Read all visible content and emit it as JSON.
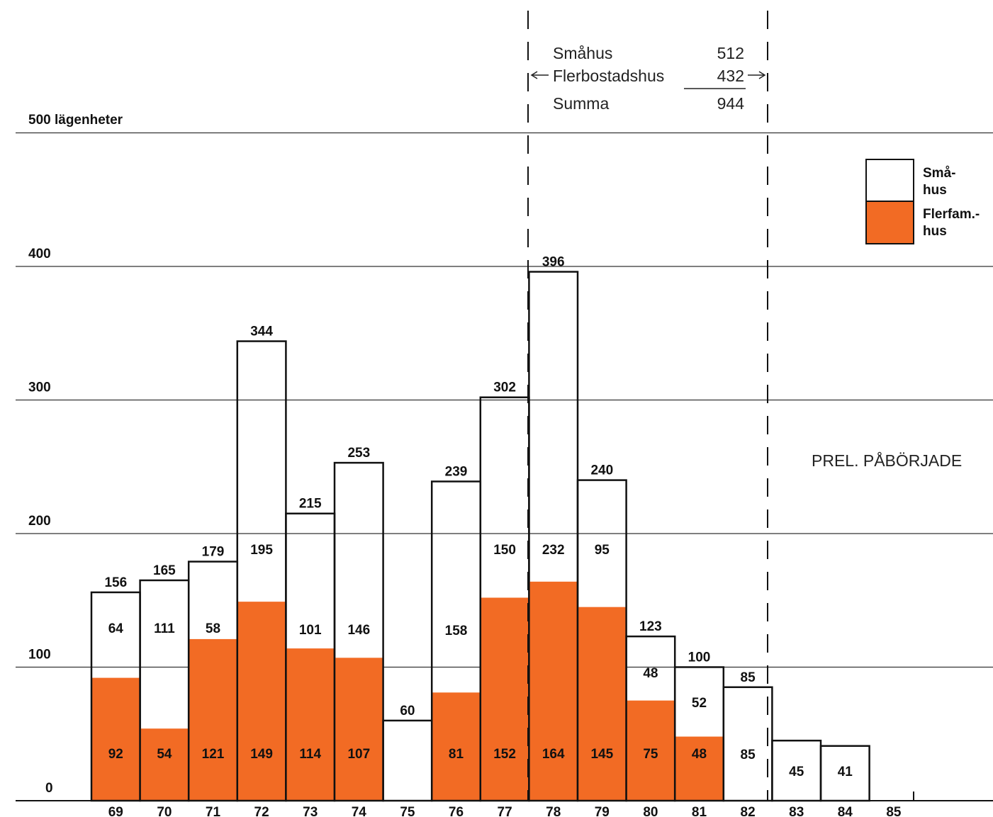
{
  "chart_data": {
    "type": "bar",
    "stacked": true,
    "ylabel": "500 lägenheter",
    "ylim": [
      0,
      500
    ],
    "y_ticks": [
      "0",
      "100",
      "200",
      "300",
      "400"
    ],
    "grid": true,
    "categories": [
      "69",
      "70",
      "71",
      "72",
      "73",
      "74",
      "75",
      "76",
      "77",
      "78",
      "79",
      "80",
      "81",
      "82",
      "83",
      "84",
      "85"
    ],
    "series": [
      {
        "name": "Flerfam.-hus",
        "values": [
          92,
          54,
          121,
          149,
          114,
          107,
          0,
          81,
          152,
          164,
          145,
          75,
          48,
          0,
          0,
          0,
          null
        ]
      },
      {
        "name": "Små-hus",
        "values": [
          64,
          111,
          58,
          195,
          101,
          146,
          60,
          158,
          150,
          232,
          95,
          48,
          52,
          85,
          45,
          41,
          null
        ]
      }
    ],
    "totals": [
      156,
      165,
      179,
      344,
      215,
      253,
      60,
      239,
      302,
      396,
      240,
      123,
      100,
      85,
      null,
      null,
      null
    ],
    "flerfam_labels": [
      "92",
      "54",
      "121",
      "149",
      "114",
      "107",
      "",
      "81",
      "152",
      "164",
      "145",
      "75",
      "48",
      "",
      "",
      "",
      ""
    ],
    "smahus_labels": [
      "64",
      "111",
      "58",
      "195",
      "101",
      "146",
      "",
      "158",
      "150",
      "232",
      "95",
      "48",
      "52",
      "85",
      "45",
      "41",
      ""
    ],
    "total_labels": [
      "156",
      "165",
      "179",
      "344",
      "215",
      "253",
      "60",
      "239",
      "302",
      "396",
      "240",
      "123",
      "100",
      "85",
      "",
      "",
      ""
    ],
    "legend": {
      "placement": "top-right",
      "entries": [
        {
          "line1": "Små-",
          "line2": "hus",
          "color": "#ffffff"
        },
        {
          "line1": "Flerfam.-",
          "line2": "hus",
          "color": "#f26b24"
        }
      ]
    },
    "annotation": "PREL. PÅBÖRJADE",
    "summary_panel": {
      "rows": [
        {
          "label": "Småhus",
          "value": "512"
        },
        {
          "label": "Flerbostadshus",
          "value": "432"
        },
        {
          "label": "Summa",
          "value": "944"
        }
      ]
    },
    "colors": {
      "flerfam": "#f26b24",
      "smahus": "#ffffff",
      "outline": "#111111",
      "grid": "#333333"
    }
  }
}
